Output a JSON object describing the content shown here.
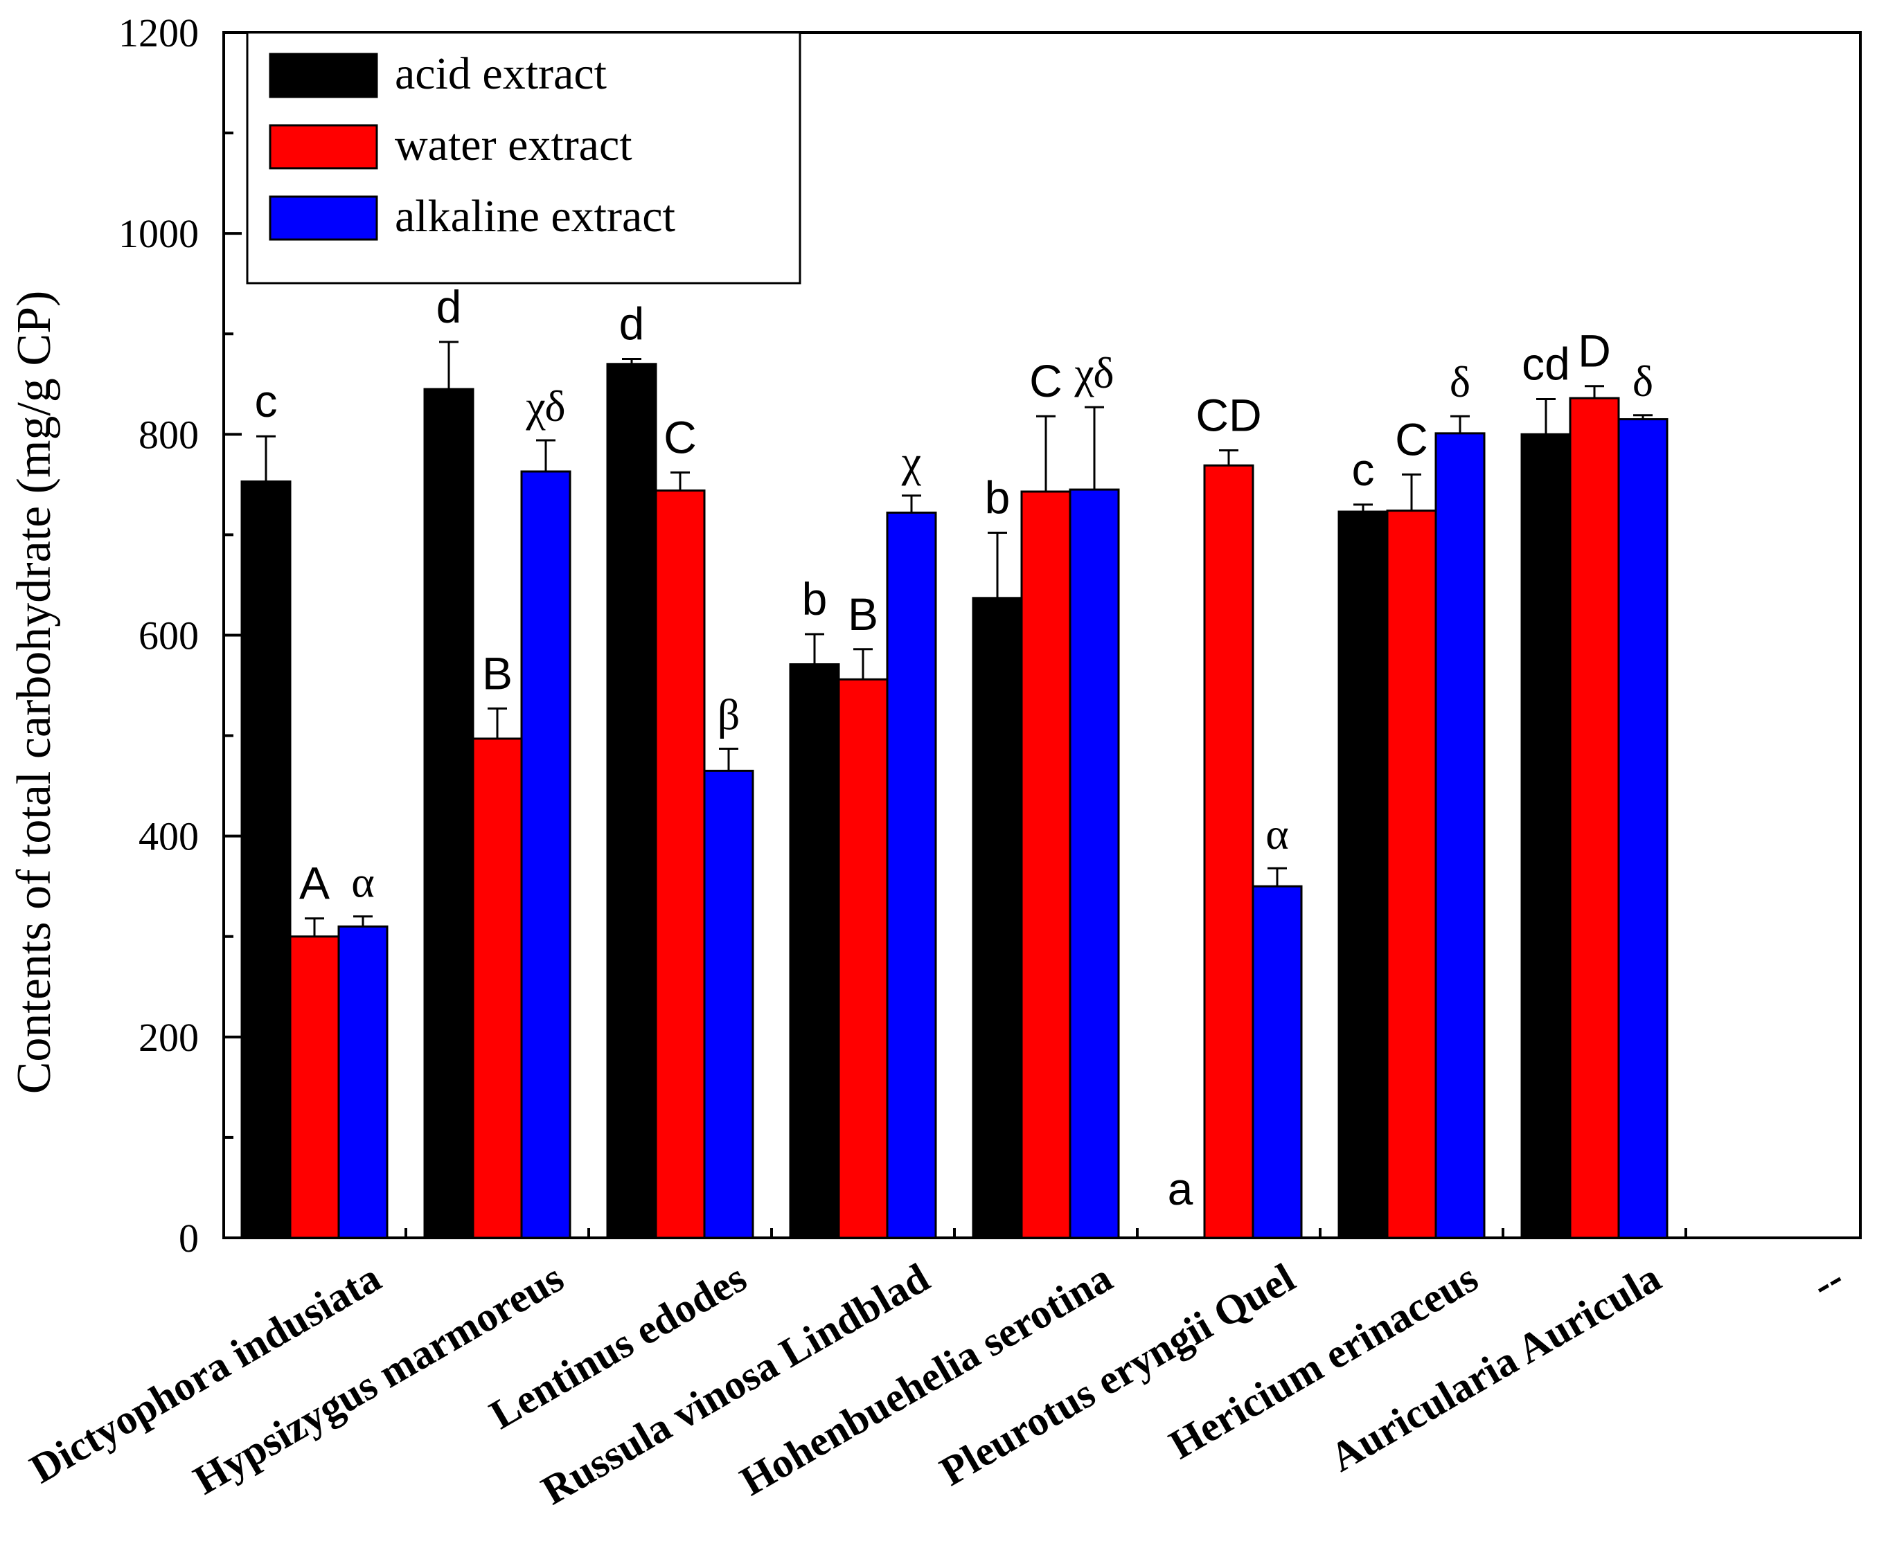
{
  "chart_data": {
    "type": "bar",
    "title": "",
    "xlabel": "",
    "ylabel": "Contents of total carbohydrate (mg/g CP)",
    "ylim": [
      0,
      1200
    ],
    "yticks": [
      0,
      200,
      400,
      600,
      800,
      1000,
      1200
    ],
    "grid": false,
    "legend_position": "top-left",
    "categories": [
      "Dictyophora indusiata",
      "Hypsizygus marmoreus",
      "Lentinus edodes",
      "Russula vinosa Lindblad",
      "Hohenbuehelia serotina",
      "Pleurotus eryngii Quel",
      "Hericium erinaceus",
      "Auricularia Auricula",
      "--"
    ],
    "series": [
      {
        "name": "acid extract",
        "color": "#000000",
        "values": [
          753,
          845,
          870,
          571,
          637,
          0,
          723,
          800,
          null
        ],
        "errors": [
          45,
          47,
          5,
          30,
          65,
          0,
          7,
          35,
          null
        ],
        "labels": [
          "c",
          "d",
          "d",
          "b",
          "b",
          "a",
          "c",
          "cd",
          null
        ]
      },
      {
        "name": "water extract",
        "color": "#ff0000",
        "values": [
          300,
          497,
          744,
          556,
          743,
          769,
          724,
          836,
          null
        ],
        "errors": [
          18,
          30,
          18,
          30,
          75,
          15,
          36,
          12,
          null
        ],
        "labels": [
          "A",
          "B",
          "C",
          "B",
          "C",
          "CD",
          "C",
          "D",
          null
        ]
      },
      {
        "name": "alkaline extract",
        "color": "#0000ff",
        "values": [
          310,
          763,
          465,
          722,
          745,
          350,
          801,
          815,
          null
        ],
        "errors": [
          10,
          31,
          22,
          17,
          82,
          18,
          17,
          4,
          null
        ],
        "labels": [
          "α",
          "χδ",
          "β",
          "χ",
          "χδ",
          "α",
          "δ",
          "δ",
          null
        ]
      }
    ]
  }
}
